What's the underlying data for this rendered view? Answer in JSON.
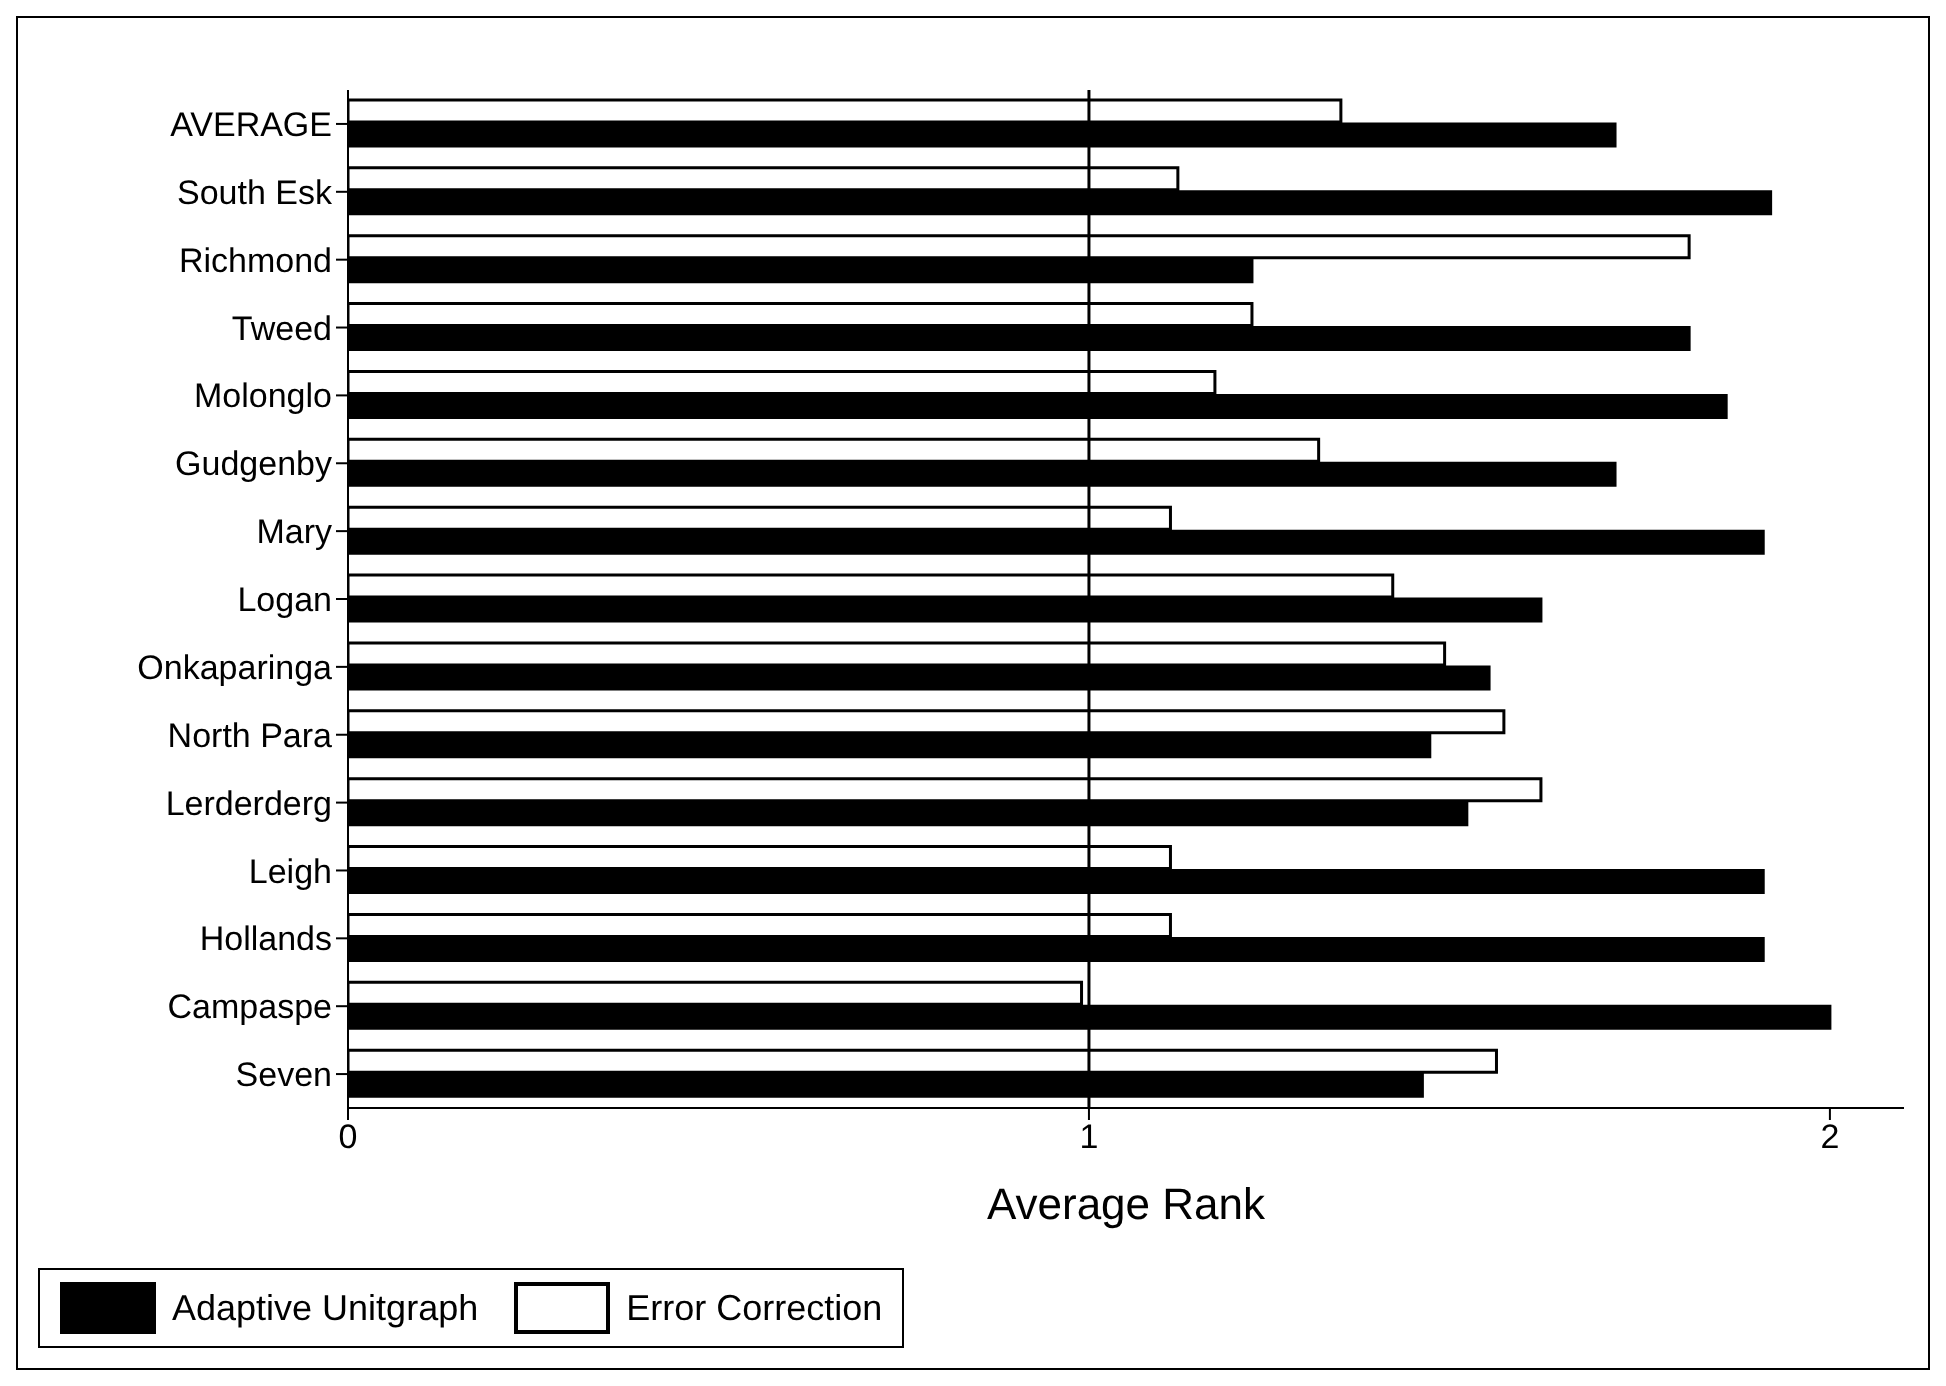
{
  "chart_data": {
    "type": "bar",
    "orientation": "horizontal",
    "xlabel": "Average Rank",
    "categories": [
      "AVERAGE",
      "South Esk",
      "Richmond",
      "Tweed",
      "Molonglo",
      "Gudgenby",
      "Mary",
      "Logan",
      "Onkaparinga",
      "North Para",
      "Lerderderg",
      "Leigh",
      "Hollands",
      "Campaspe",
      "Seven"
    ],
    "series": [
      {
        "name": "Adaptive Unitgraph",
        "color": "#000000",
        "values": [
          1.71,
          1.92,
          1.22,
          1.81,
          1.86,
          1.71,
          1.91,
          1.61,
          1.54,
          1.46,
          1.51,
          1.91,
          1.91,
          2.0,
          1.45
        ]
      },
      {
        "name": "Error Correction",
        "color": "#ffffff",
        "values": [
          1.34,
          1.12,
          1.81,
          1.22,
          1.17,
          1.31,
          1.11,
          1.41,
          1.48,
          1.56,
          1.61,
          1.11,
          1.11,
          0.99,
          1.55
        ]
      }
    ],
    "xlim": [
      0,
      2.1
    ],
    "xticks": [
      0,
      1,
      2
    ],
    "ref_lines": [
      {
        "axis": "x",
        "value": 1
      }
    ],
    "legend": "bottom"
  }
}
